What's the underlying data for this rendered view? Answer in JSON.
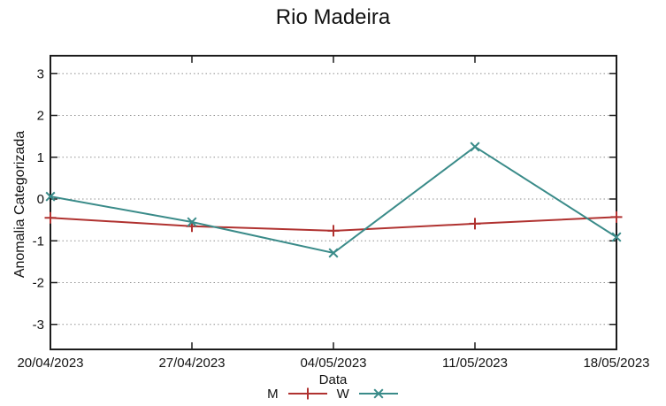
{
  "title": "Rio Madeira",
  "chart_data": {
    "type": "line",
    "title": "Rio Madeira",
    "xlabel": "Data",
    "ylabel": "Anomalia Categorizada",
    "categories": [
      "20/04/2023",
      "27/04/2023",
      "04/05/2023",
      "11/05/2023",
      "18/05/2023"
    ],
    "series": [
      {
        "name": "M",
        "marker": "plus",
        "color": "#b03230",
        "values": [
          -0.45,
          -0.65,
          -0.76,
          -0.59,
          -0.43
        ]
      },
      {
        "name": "W",
        "marker": "cross",
        "color": "#3a8b89",
        "values": [
          0.06,
          -0.55,
          -1.29,
          1.25,
          -0.91
        ]
      }
    ],
    "yticks": [
      3,
      2,
      1,
      0,
      -1,
      -2,
      -3
    ],
    "ylim": [
      -3.6,
      3.43
    ],
    "grid": "horizontal-dotted",
    "legend_position": "bottom-center"
  },
  "colors": {
    "axis": "#1c1c1c",
    "grid": "#909090",
    "text": "#111111",
    "background": "#ffffff",
    "series_m": "#b03230",
    "series_w": "#3a8b89"
  }
}
